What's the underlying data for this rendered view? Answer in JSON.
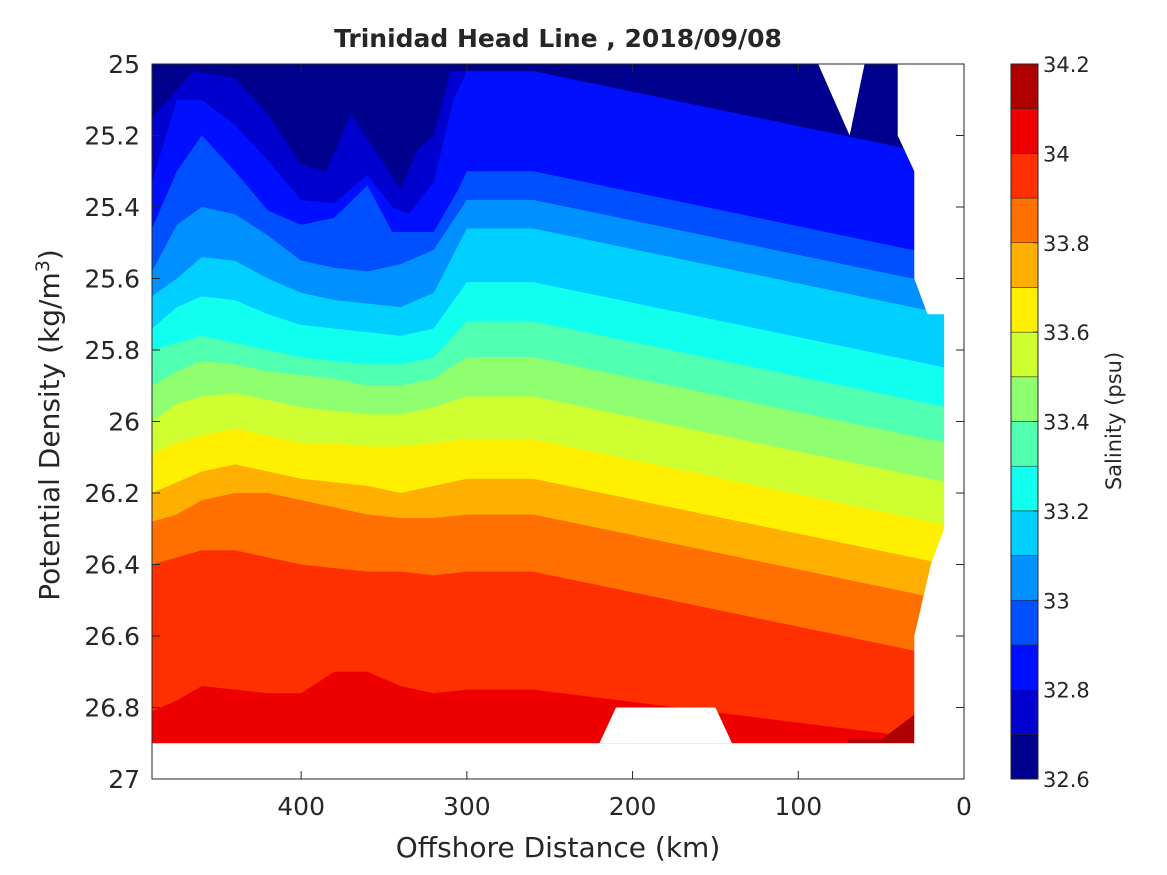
{
  "chart_data": {
    "type": "heatmap",
    "subtype": "filled-contour",
    "title": "Trinidad Head Line , 2018/09/08",
    "xlabel": "Offshore Distance (km)",
    "ylabel_text": "Potential Density (kg/m",
    "ylabel_sup": "3",
    "ylabel_close": ")",
    "colorbar_label": "Salinity (psu)",
    "x_reversed": true,
    "y_reversed": true,
    "xlim": [
      490,
      0
    ],
    "ylim": [
      25,
      27
    ],
    "x_ticks": [
      400,
      300,
      200,
      100,
      0
    ],
    "x_tick_labels": [
      "400",
      "300",
      "200",
      "100",
      "0"
    ],
    "y_ticks": [
      25,
      25.2,
      25.4,
      25.6,
      25.8,
      26,
      26.2,
      26.4,
      26.6,
      26.8,
      27
    ],
    "y_tick_labels": [
      "25",
      "25.2",
      "25.4",
      "25.6",
      "25.8",
      "26",
      "26.2",
      "26.4",
      "26.6",
      "26.8",
      "27"
    ],
    "color_ticks": [
      32.6,
      32.8,
      33,
      33.2,
      33.4,
      33.6,
      33.8,
      34,
      34.2
    ],
    "color_tick_labels": [
      "32.6",
      "32.8",
      "33",
      "33.2",
      "33.4",
      "33.6",
      "33.8",
      "34",
      "34.2"
    ],
    "levels": [
      32.6,
      32.7,
      32.8,
      32.9,
      33.0,
      33.1,
      33.2,
      33.3,
      33.4,
      33.5,
      33.6,
      33.7,
      33.8,
      33.9,
      34.0,
      34.1,
      34.2
    ],
    "level_colors": [
      "#00008f",
      "#0000cf",
      "#0010ff",
      "#0050ff",
      "#0090ff",
      "#00cfff",
      "#10ffef",
      "#50ffaf",
      "#90ff6f",
      "#cfff30",
      "#ffef00",
      "#ffaf00",
      "#ff7000",
      "#ff3000",
      "#ef0000",
      "#af0000"
    ],
    "contours": [
      {
        "level": 32.7,
        "points": [
          [
            490,
            25.15
          ],
          [
            465,
            25.02
          ],
          [
            440,
            25.04
          ],
          [
            420,
            25.14
          ],
          [
            400,
            25.28
          ],
          [
            385,
            25.3
          ],
          [
            370,
            25.14
          ],
          [
            350,
            25.28
          ],
          [
            340,
            25.35
          ],
          [
            330,
            25.24
          ],
          [
            320,
            25.2
          ],
          [
            310,
            25.02
          ]
        ]
      },
      {
        "level": 32.8,
        "points": [
          [
            490,
            25.33
          ],
          [
            475,
            25.1
          ],
          [
            460,
            25.1
          ],
          [
            440,
            25.17
          ],
          [
            420,
            25.27
          ],
          [
            400,
            25.38
          ],
          [
            380,
            25.39
          ],
          [
            360,
            25.31
          ],
          [
            345,
            25.4
          ],
          [
            335,
            25.42
          ],
          [
            320,
            25.33
          ],
          [
            308,
            25.1
          ],
          [
            300,
            25.02
          ]
        ]
      },
      {
        "level": 32.9,
        "points": [
          [
            490,
            25.46
          ],
          [
            475,
            25.3
          ],
          [
            460,
            25.2
          ],
          [
            440,
            25.3
          ],
          [
            420,
            25.41
          ],
          [
            400,
            25.45
          ],
          [
            380,
            25.43
          ],
          [
            360,
            25.34
          ],
          [
            345,
            25.47
          ],
          [
            320,
            25.47
          ],
          [
            305,
            25.35
          ],
          [
            300,
            25.3
          ]
        ]
      },
      {
        "level": 33.0,
        "points": [
          [
            490,
            25.58
          ],
          [
            475,
            25.45
          ],
          [
            460,
            25.4
          ],
          [
            440,
            25.42
          ],
          [
            420,
            25.48
          ],
          [
            400,
            25.55
          ],
          [
            380,
            25.57
          ],
          [
            360,
            25.58
          ],
          [
            340,
            25.56
          ],
          [
            320,
            25.52
          ],
          [
            300,
            25.38
          ]
        ]
      },
      {
        "level": 33.1,
        "points": [
          [
            490,
            25.65
          ],
          [
            475,
            25.6
          ],
          [
            460,
            25.54
          ],
          [
            440,
            25.55
          ],
          [
            420,
            25.6
          ],
          [
            400,
            25.64
          ],
          [
            380,
            25.66
          ],
          [
            360,
            25.67
          ],
          [
            340,
            25.68
          ],
          [
            320,
            25.64
          ],
          [
            300,
            25.46
          ]
        ]
      },
      {
        "level": 33.2,
        "points": [
          [
            490,
            25.74
          ],
          [
            475,
            25.68
          ],
          [
            460,
            25.65
          ],
          [
            440,
            25.66
          ],
          [
            420,
            25.7
          ],
          [
            400,
            25.73
          ],
          [
            380,
            25.74
          ],
          [
            360,
            25.75
          ],
          [
            340,
            25.76
          ],
          [
            320,
            25.74
          ],
          [
            300,
            25.61
          ]
        ]
      },
      {
        "level": 33.3,
        "points": [
          [
            490,
            25.8
          ],
          [
            475,
            25.78
          ],
          [
            460,
            25.76
          ],
          [
            440,
            25.78
          ],
          [
            420,
            25.8
          ],
          [
            400,
            25.82
          ],
          [
            380,
            25.83
          ],
          [
            360,
            25.84
          ],
          [
            340,
            25.84
          ],
          [
            320,
            25.82
          ],
          [
            300,
            25.72
          ]
        ]
      },
      {
        "level": 33.4,
        "points": [
          [
            490,
            25.9
          ],
          [
            475,
            25.86
          ],
          [
            460,
            25.83
          ],
          [
            440,
            25.84
          ],
          [
            420,
            25.86
          ],
          [
            400,
            25.87
          ],
          [
            380,
            25.88
          ],
          [
            360,
            25.9
          ],
          [
            340,
            25.9
          ],
          [
            320,
            25.88
          ],
          [
            300,
            25.82
          ]
        ]
      },
      {
        "level": 33.5,
        "points": [
          [
            490,
            26.0
          ],
          [
            475,
            25.95
          ],
          [
            460,
            25.93
          ],
          [
            440,
            25.92
          ],
          [
            420,
            25.94
          ],
          [
            400,
            25.96
          ],
          [
            380,
            25.97
          ],
          [
            360,
            25.98
          ],
          [
            340,
            25.98
          ],
          [
            320,
            25.96
          ],
          [
            300,
            25.93
          ]
        ]
      },
      {
        "level": 33.6,
        "points": [
          [
            490,
            26.09
          ],
          [
            475,
            26.06
          ],
          [
            460,
            26.04
          ],
          [
            440,
            26.02
          ],
          [
            420,
            26.04
          ],
          [
            400,
            26.06
          ],
          [
            380,
            26.06
          ],
          [
            360,
            26.07
          ],
          [
            340,
            26.07
          ],
          [
            320,
            26.06
          ],
          [
            300,
            26.05
          ]
        ]
      },
      {
        "level": 33.7,
        "points": [
          [
            490,
            26.2
          ],
          [
            475,
            26.17
          ],
          [
            460,
            26.14
          ],
          [
            440,
            26.12
          ],
          [
            420,
            26.14
          ],
          [
            400,
            26.16
          ],
          [
            380,
            26.17
          ],
          [
            360,
            26.18
          ],
          [
            340,
            26.2
          ],
          [
            320,
            26.18
          ],
          [
            300,
            26.16
          ]
        ]
      },
      {
        "level": 33.8,
        "points": [
          [
            490,
            26.28
          ],
          [
            475,
            26.26
          ],
          [
            460,
            26.22
          ],
          [
            440,
            26.2
          ],
          [
            420,
            26.2
          ],
          [
            400,
            26.22
          ],
          [
            380,
            26.24
          ],
          [
            360,
            26.26
          ],
          [
            340,
            26.27
          ],
          [
            320,
            26.27
          ],
          [
            300,
            26.26
          ]
        ]
      },
      {
        "level": 33.9,
        "points": [
          [
            490,
            26.4
          ],
          [
            475,
            26.38
          ],
          [
            460,
            26.36
          ],
          [
            440,
            26.36
          ],
          [
            420,
            26.38
          ],
          [
            400,
            26.4
          ],
          [
            380,
            26.41
          ],
          [
            360,
            26.42
          ],
          [
            340,
            26.42
          ],
          [
            320,
            26.43
          ],
          [
            300,
            26.42
          ]
        ]
      },
      {
        "level": 34.0,
        "points": [
          [
            490,
            26.81
          ],
          [
            475,
            26.78
          ],
          [
            460,
            26.74
          ],
          [
            440,
            26.75
          ],
          [
            420,
            26.76
          ],
          [
            400,
            26.76
          ],
          [
            380,
            26.7
          ],
          [
            360,
            26.7
          ],
          [
            340,
            26.74
          ],
          [
            320,
            26.76
          ],
          [
            300,
            26.75
          ]
        ]
      },
      {
        "level": 34.1,
        "points": [
          [
            70,
            26.89
          ],
          [
            50,
            26.89
          ],
          [
            30,
            26.82
          ]
        ]
      }
    ]
  }
}
